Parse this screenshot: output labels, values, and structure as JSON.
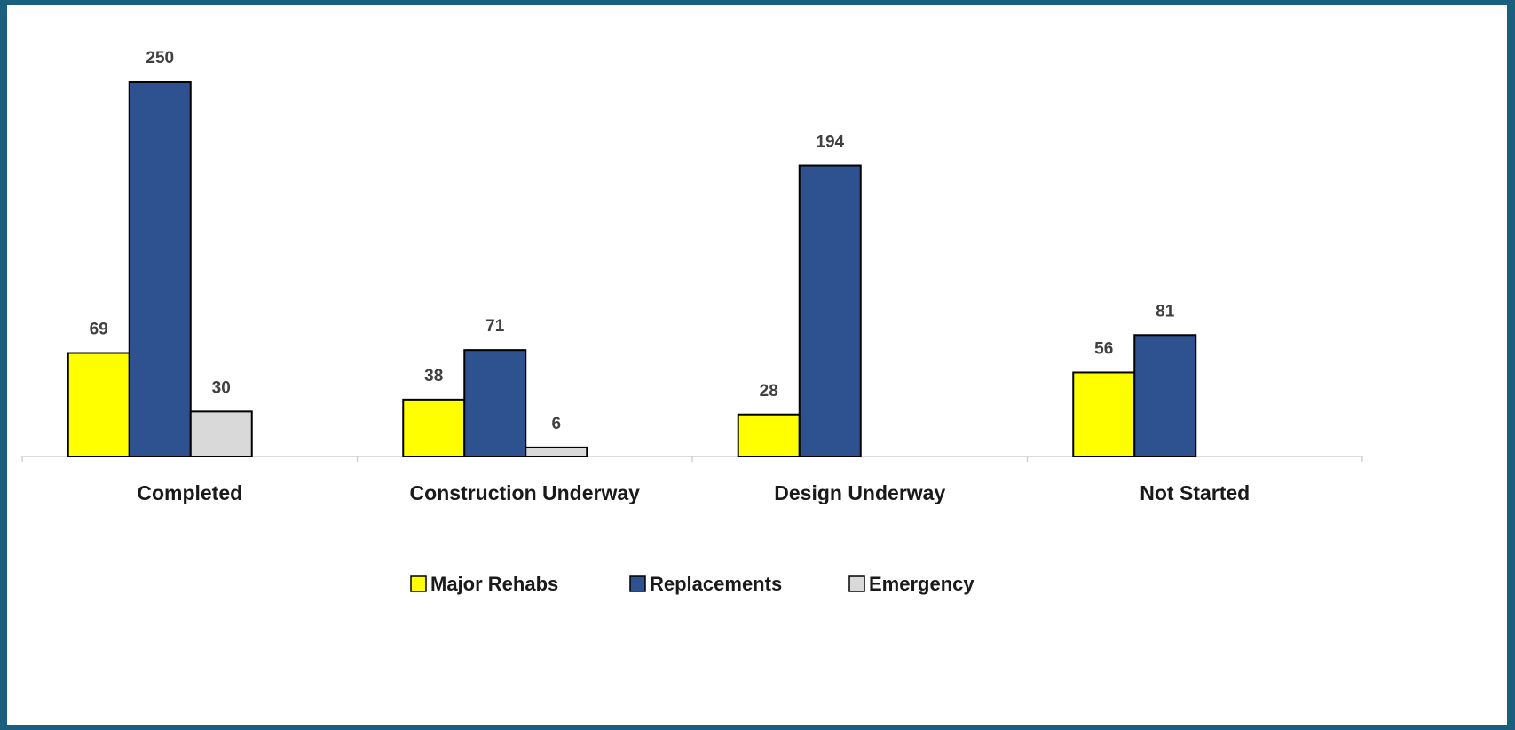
{
  "chart_data": {
    "type": "bar",
    "categories": [
      "Completed",
      "Construction Underway",
      "Design Underway",
      "Not Started"
    ],
    "series": [
      {
        "name": "Major Rehabs",
        "color": "#ffff00",
        "values": [
          69,
          38,
          28,
          56
        ]
      },
      {
        "name": "Replacements",
        "color": "#2e5190",
        "values": [
          250,
          71,
          194,
          81
        ]
      },
      {
        "name": "Emergency",
        "color": "#d9d9d9",
        "values": [
          30,
          6,
          null,
          null
        ]
      }
    ],
    "legend": "bottom"
  }
}
